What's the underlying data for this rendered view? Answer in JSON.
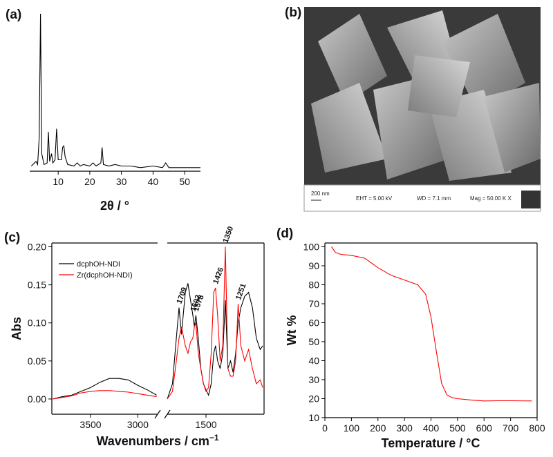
{
  "chart_data": [
    {
      "type": "line",
      "panel_label": "(a)",
      "xlabel": "2θ / °",
      "x": [
        1.5,
        3.0,
        3.5,
        4.0,
        4.4,
        4.8,
        5.5,
        6.5,
        6.9,
        7.3,
        7.9,
        8.3,
        9.0,
        9.5,
        10.0,
        11.0,
        11.4,
        11.8,
        12.2,
        13,
        15,
        16,
        17,
        18,
        20,
        21,
        22,
        23.5,
        23.9,
        24.3,
        26,
        28,
        30,
        33,
        36,
        40,
        43,
        44,
        45,
        50,
        55
      ],
      "values": [
        2,
        5,
        3,
        20,
        100,
        10,
        3,
        4,
        24,
        5,
        10,
        4,
        6,
        26,
        6,
        6,
        14,
        15,
        8,
        3,
        2,
        4,
        2,
        3,
        2,
        4,
        2,
        4,
        14,
        3,
        2,
        3,
        2,
        2,
        1,
        2,
        1,
        4,
        1,
        1,
        1
      ],
      "color": "#000000",
      "xlim": [
        1,
        55
      ],
      "xticks": [
        10,
        20,
        30,
        40,
        50
      ],
      "ylim": [
        0,
        100
      ]
    },
    {
      "type": "line",
      "panel_label": "(c)",
      "xlabel": "Wavenumbers / cm",
      "xlabel_exponent": "−1",
      "ylabel": "Abs",
      "x": [
        3900,
        3800,
        3700,
        3600,
        3500,
        3400,
        3300,
        3200,
        3100,
        3000,
        2900,
        2800,
        1800,
        1760,
        1730,
        1709,
        1690,
        1660,
        1640,
        1620,
        1602,
        1590,
        1578,
        1560,
        1540,
        1520,
        1500,
        1480,
        1460,
        1440,
        1426,
        1410,
        1390,
        1370,
        1350,
        1330,
        1310,
        1290,
        1270,
        1251,
        1230,
        1200,
        1170,
        1140,
        1110,
        1080,
        1060
      ],
      "series": [
        {
          "name": "dcphOH-NDI",
          "color": "#000000",
          "values": [
            0.0,
            0.003,
            0.005,
            0.01,
            0.015,
            0.022,
            0.027,
            0.027,
            0.025,
            0.018,
            0.012,
            0.005,
            0.0,
            0.02,
            0.08,
            0.12,
            0.085,
            0.14,
            0.152,
            0.13,
            0.11,
            0.095,
            0.11,
            0.08,
            0.04,
            0.02,
            0.012,
            0.005,
            0.02,
            0.06,
            0.07,
            0.05,
            0.04,
            0.06,
            0.13,
            0.04,
            0.05,
            0.035,
            0.06,
            0.1,
            0.12,
            0.135,
            0.14,
            0.12,
            0.08,
            0.065,
            0.07
          ]
        },
        {
          "name": "Zr(dcphOH-NDI)",
          "color": "#ff0000",
          "values": [
            0.0,
            0.002,
            0.004,
            0.008,
            0.01,
            0.011,
            0.011,
            0.01,
            0.009,
            0.007,
            0.005,
            0.003,
            0.0,
            0.01,
            0.05,
            0.08,
            0.095,
            0.07,
            0.06,
            0.075,
            0.08,
            0.095,
            0.1,
            0.06,
            0.04,
            0.02,
            0.01,
            0.015,
            0.06,
            0.14,
            0.146,
            0.11,
            0.05,
            0.07,
            0.2,
            0.04,
            0.03,
            0.03,
            0.05,
            0.125,
            0.07,
            0.05,
            0.065,
            0.04,
            0.02,
            0.025,
            0.015
          ]
        }
      ],
      "xlim": [
        3910,
        1050
      ],
      "xbreak": [
        2790,
        1800
      ],
      "xticks": [
        3500,
        3000,
        1500
      ],
      "ylim": [
        -0.02,
        0.205
      ],
      "yticks": [
        {
          "value": 0,
          "label": "0.00"
        },
        {
          "value": 0.05,
          "label": "0.05"
        },
        {
          "value": 0.1,
          "label": "0.10"
        },
        {
          "value": 0.15,
          "label": "0.15"
        },
        {
          "value": 0.2,
          "label": "0.20"
        }
      ],
      "peak_labels": [
        1709,
        1602,
        1578,
        1426,
        1350,
        1251
      ],
      "legend": "upper left"
    },
    {
      "type": "line",
      "panel_label": "(d)",
      "xlabel": "Temperature / °C",
      "ylabel": "Wt %",
      "x": [
        25,
        40,
        60,
        100,
        150,
        200,
        250,
        300,
        350,
        380,
        400,
        420,
        440,
        460,
        480,
        500,
        550,
        600,
        650,
        700,
        780
      ],
      "values": [
        100,
        97,
        96,
        95.5,
        94,
        89,
        85,
        82.5,
        80,
        75,
        63,
        45,
        28,
        22,
        20.5,
        20,
        19.3,
        18.8,
        18.9,
        18.9,
        18.8
      ],
      "color": "#ff0000",
      "xlim": [
        0,
        800
      ],
      "xticks": [
        0,
        100,
        200,
        300,
        400,
        500,
        600,
        700,
        800
      ],
      "ylim": [
        10,
        102
      ],
      "yticks": [
        10,
        20,
        30,
        40,
        50,
        60,
        70,
        80,
        90,
        100
      ]
    }
  ],
  "image_panel": {
    "panel_label": "(b)",
    "scale_bar": "200 nm",
    "eht": "EHT = 5.00 kV",
    "wd": "WD = 7.1 mm",
    "mag": "Mag = 50.00 K X"
  }
}
